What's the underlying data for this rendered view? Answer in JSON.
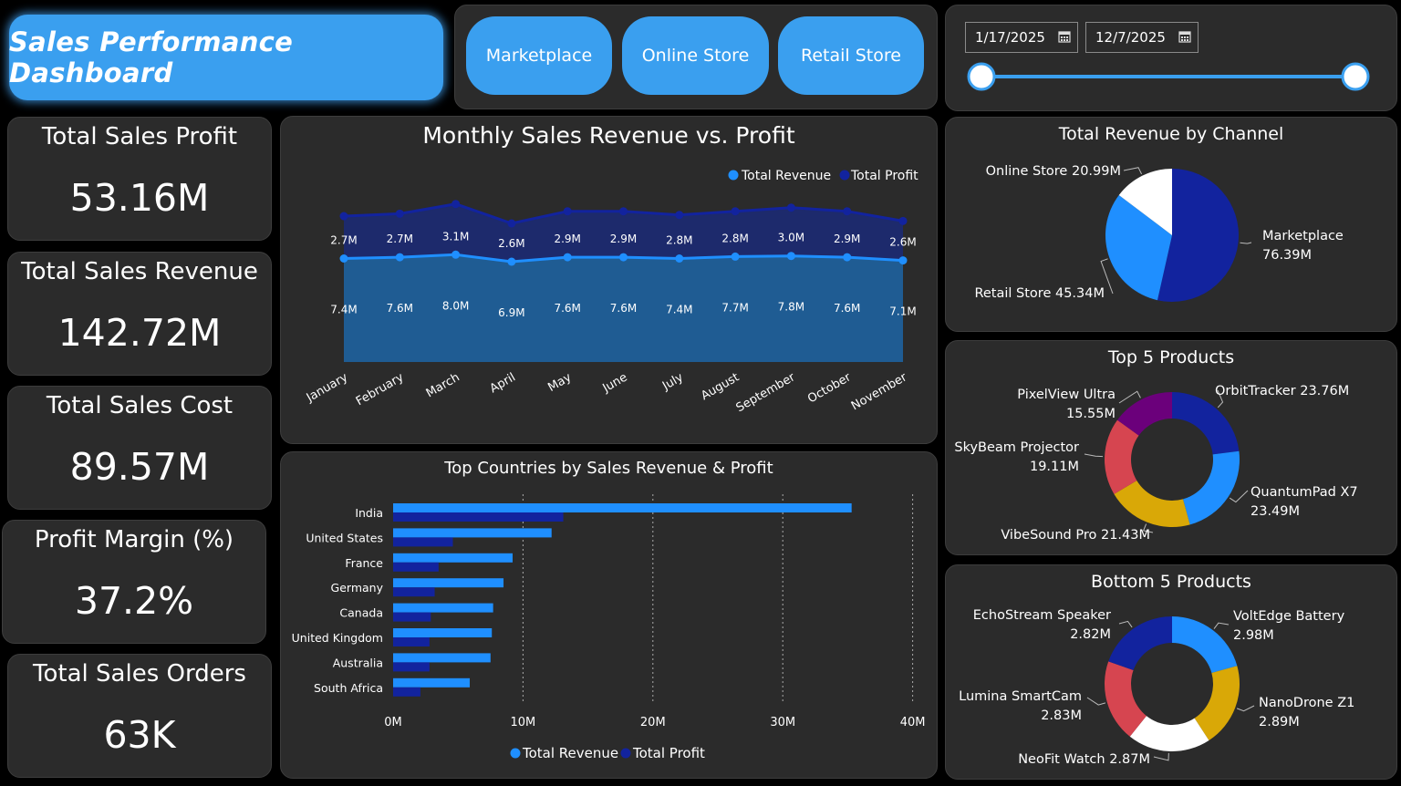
{
  "header": {
    "title": "Sales Performance Dashboard"
  },
  "channels": {
    "marketplace": "Marketplace",
    "online": "Online Store",
    "retail": "Retail Store"
  },
  "date_filter": {
    "start": "1/17/2025",
    "end": "12/7/2025",
    "slider_start": 0,
    "slider_end": 1
  },
  "kpis": {
    "profit": {
      "label": "Total Sales Profit",
      "value": "53.16M"
    },
    "revenue": {
      "label": "Total Sales Revenue",
      "value": "142.72M"
    },
    "cost": {
      "label": "Total Sales Cost",
      "value": "89.57M"
    },
    "margin": {
      "label": "Profit Margin (%)",
      "value": "37.2%"
    },
    "orders": {
      "label": "Total Sales Orders",
      "value": "63K"
    }
  },
  "monthly": {
    "title": "Monthly Sales Revenue vs. Profit",
    "legend": [
      "Total Revenue",
      "Total Profit"
    ]
  },
  "countries": {
    "title": "Top Countries by Sales Revenue & Profit",
    "legend": [
      "Total Revenue",
      "Total Profit"
    ]
  },
  "channel_pie": {
    "title": "Total Revenue by Channel"
  },
  "top5": {
    "title": "Top 5 Products"
  },
  "bottom5": {
    "title": "Bottom 5 Products"
  },
  "colors": {
    "revenue": "#1f8fff",
    "profit": "#12239e",
    "accent": "#3a9fef",
    "panel": "#2b2b2b"
  },
  "chart_data": [
    {
      "type": "area",
      "title": "Monthly Sales Revenue vs. Profit",
      "categories": [
        "January",
        "February",
        "March",
        "April",
        "May",
        "June",
        "July",
        "August",
        "September",
        "October",
        "November"
      ],
      "series": [
        {
          "name": "Total Revenue",
          "values": [
            7.4,
            7.6,
            8.0,
            6.9,
            7.6,
            7.6,
            7.4,
            7.7,
            7.8,
            7.6,
            7.1
          ],
          "labels": [
            "7.4M",
            "7.6M",
            "8.0M",
            "6.9M",
            "7.6M",
            "7.6M",
            "7.4M",
            "7.7M",
            "7.8M",
            "7.6M",
            "7.1M"
          ]
        },
        {
          "name": "Total Profit",
          "values": [
            2.7,
            2.7,
            3.1,
            2.6,
            2.9,
            2.9,
            2.8,
            2.8,
            3.0,
            2.9,
            2.6
          ],
          "labels": [
            "2.7M",
            "2.7M",
            "3.1M",
            "2.6M",
            "2.9M",
            "2.9M",
            "2.8M",
            "2.8M",
            "3.0M",
            "2.9M",
            "2.6M"
          ]
        }
      ],
      "legend": "top-right"
    },
    {
      "type": "bar",
      "orientation": "horizontal",
      "title": "Top Countries by Sales Revenue & Profit",
      "categories": [
        "India",
        "United States",
        "France",
        "Germany",
        "Canada",
        "United Kingdom",
        "Australia",
        "South Africa"
      ],
      "series": [
        {
          "name": "Total Revenue",
          "values": [
            35.3,
            12.2,
            9.2,
            8.5,
            7.7,
            7.6,
            7.5,
            5.9
          ]
        },
        {
          "name": "Total Profit",
          "values": [
            13.1,
            4.6,
            3.5,
            3.2,
            2.9,
            2.8,
            2.8,
            2.1
          ]
        }
      ],
      "xticks": [
        "0M",
        "10M",
        "20M",
        "30M",
        "40M"
      ],
      "xlim": [
        0,
        40
      ],
      "grid": true,
      "legend": "bottom"
    },
    {
      "type": "pie",
      "title": "Total Revenue by Channel",
      "slices": [
        {
          "name": "Marketplace",
          "value": 76.39,
          "label": "76.39M",
          "color": "#12239e"
        },
        {
          "name": "Retail Store",
          "value": 45.34,
          "label": "45.34M",
          "color": "#1f8fff"
        },
        {
          "name": "Online Store",
          "value": 20.99,
          "label": "20.99M",
          "color": "#ffffff"
        }
      ]
    },
    {
      "type": "pie",
      "variant": "donut",
      "title": "Top 5 Products",
      "slices": [
        {
          "name": "OrbitTracker",
          "value": 23.76,
          "label": "23.76M",
          "color": "#12239e"
        },
        {
          "name": "QuantumPad X7",
          "value": 23.49,
          "label": "23.49M",
          "color": "#1f8fff"
        },
        {
          "name": "VibeSound Pro",
          "value": 21.43,
          "label": "21.43M",
          "color": "#d9a807"
        },
        {
          "name": "SkyBeam Projector",
          "value": 19.11,
          "label": "19.11M",
          "color": "#d64550"
        },
        {
          "name": "PixelView Ultra",
          "value": 15.55,
          "label": "15.55M",
          "color": "#6b007b"
        }
      ]
    },
    {
      "type": "pie",
      "variant": "donut",
      "title": "Bottom 5 Products",
      "slices": [
        {
          "name": "VoltEdge Battery",
          "value": 2.98,
          "label": "2.98M",
          "color": "#1f8fff"
        },
        {
          "name": "NanoDrone Z1",
          "value": 2.89,
          "label": "2.89M",
          "color": "#d9a807"
        },
        {
          "name": "NeoFit Watch",
          "value": 2.87,
          "label": "2.87M",
          "color": "#ffffff"
        },
        {
          "name": "Lumina SmartCam",
          "value": 2.83,
          "label": "2.83M",
          "color": "#d64550"
        },
        {
          "name": "EchoStream Speaker",
          "value": 2.82,
          "label": "2.82M",
          "color": "#12239e"
        }
      ]
    }
  ]
}
